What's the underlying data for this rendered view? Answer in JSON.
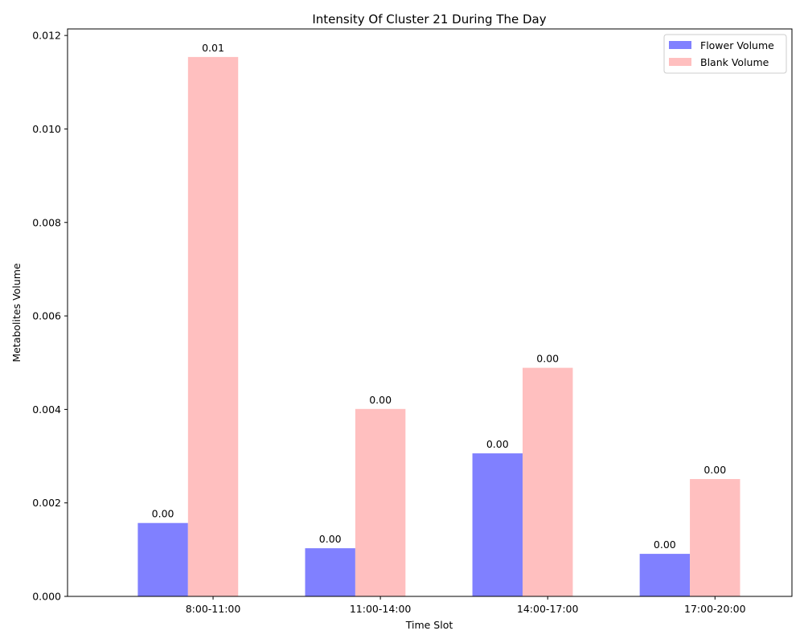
{
  "chart_data": {
    "type": "bar",
    "title": "Intensity Of Cluster 21 During The Day",
    "xlabel": "Time Slot",
    "ylabel": "Metabolites Volume",
    "categories": [
      "8:00-11:00",
      "11:00-14:00",
      "14:00-17:00",
      "17:00-20:00"
    ],
    "ylim": [
      0,
      0.01214
    ],
    "yticks": [
      0.0,
      0.002,
      0.004,
      0.006,
      0.008,
      0.01,
      0.012
    ],
    "ytick_labels": [
      "0.000",
      "0.002",
      "0.004",
      "0.006",
      "0.008",
      "0.010",
      "0.012"
    ],
    "legend_position": "top-right",
    "series": [
      {
        "name": "Flower Volume",
        "color": "#8080ff",
        "values": [
          0.00157,
          0.00103,
          0.00306,
          0.00091
        ],
        "labels": [
          "0.00",
          "0.00",
          "0.00",
          "0.00"
        ]
      },
      {
        "name": "Blank Volume",
        "color": "#ffbfbf",
        "values": [
          0.01154,
          0.00401,
          0.00489,
          0.00251
        ],
        "labels": [
          "0.01",
          "0.00",
          "0.00",
          "0.00"
        ]
      }
    ]
  }
}
